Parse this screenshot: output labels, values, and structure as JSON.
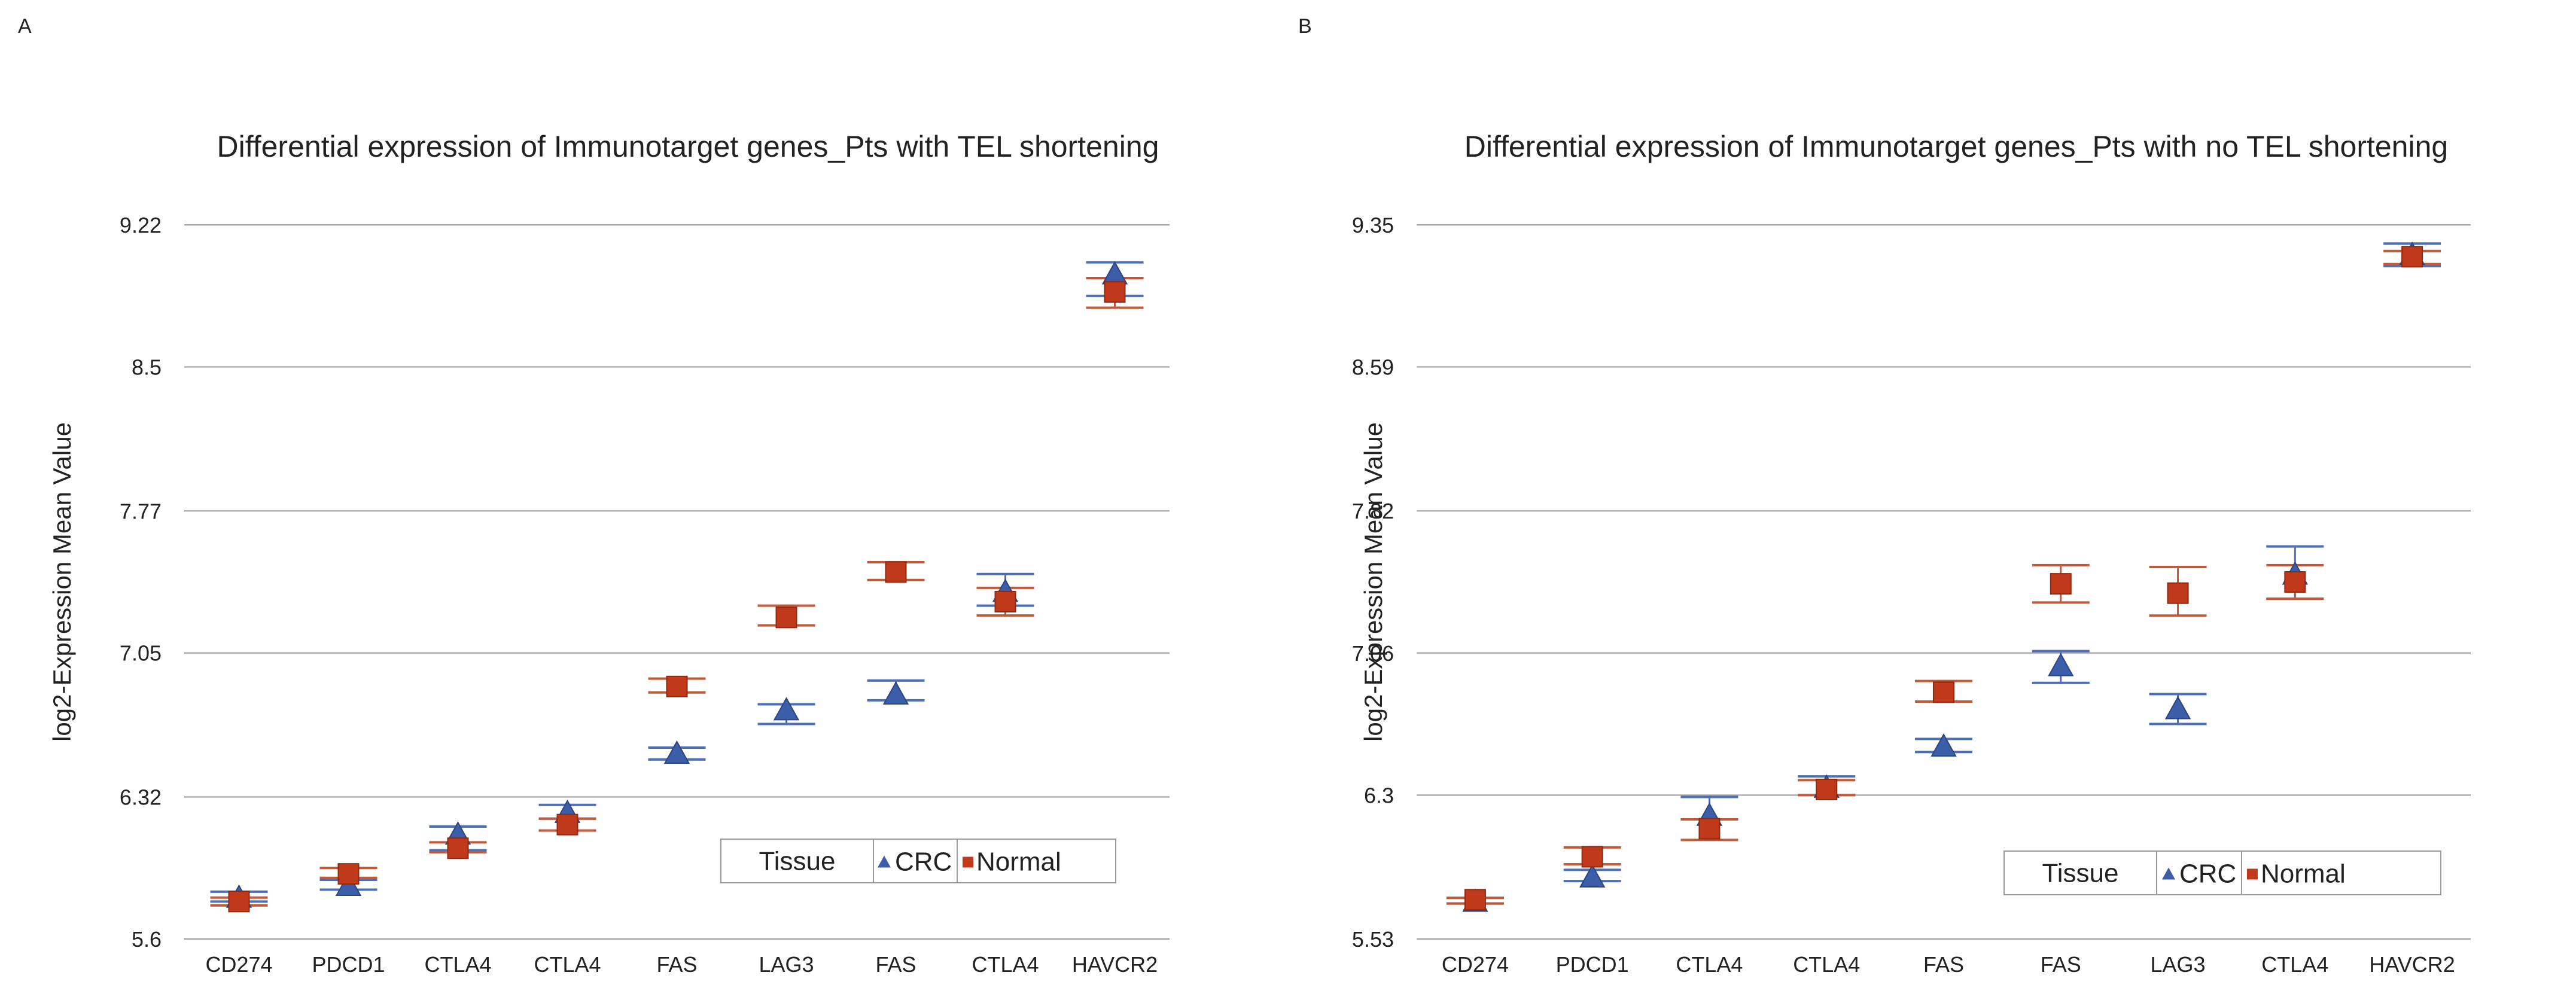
{
  "colors": {
    "crc": "#3c5ea8",
    "normal": "#c0391b",
    "crc_error": "#4c6fb8",
    "normal_error": "#c05a3a",
    "grid": "#9a9a9a",
    "text": "#222222"
  },
  "chart_data": [
    {
      "panel_label": "A",
      "type": "scatter",
      "title": "Differential expression of Immunotarget genes_Pts with TEL shortening",
      "xlabel": "",
      "ylabel": "log2-Expression Mean Value",
      "yticks": [
        "5.6",
        "6.32",
        "7.05",
        "7.77",
        "8.5",
        "9.22"
      ],
      "ylim": [
        5.6,
        9.22
      ],
      "grid": "horizontal",
      "legend": {
        "title": "Tissue",
        "entries": [
          "CRC",
          "Normal"
        ],
        "position": "bottom-right"
      },
      "categories": [
        "CD274",
        "PDCD1",
        "CTLA4",
        "CTLA4",
        "FAS",
        "LAG3",
        "FAS",
        "CTLA4",
        "HAVCR2"
      ],
      "series": [
        {
          "name": "CRC",
          "marker": "triangle",
          "values": [
            5.81,
            5.87,
            6.13,
            6.24,
            6.54,
            6.76,
            6.84,
            7.36,
            8.97
          ],
          "error_low": [
            5.79,
            5.85,
            6.05,
            6.21,
            6.51,
            6.69,
            6.81,
            7.29,
            8.86
          ],
          "error_high": [
            5.84,
            5.9,
            6.17,
            6.28,
            6.57,
            6.79,
            6.91,
            7.45,
            9.03
          ]
        },
        {
          "name": "Normal",
          "marker": "square",
          "values": [
            5.79,
            5.93,
            6.06,
            6.18,
            6.88,
            7.23,
            7.46,
            7.31,
            8.88
          ],
          "error_low": [
            5.77,
            5.91,
            6.04,
            6.15,
            6.85,
            7.19,
            7.42,
            7.24,
            8.8
          ],
          "error_high": [
            5.81,
            5.96,
            6.09,
            6.21,
            6.92,
            7.29,
            7.51,
            7.38,
            8.95
          ]
        }
      ]
    },
    {
      "panel_label": "B",
      "type": "scatter",
      "title": "Differential expression of Immunotarget genes_Pts with no TEL shortening",
      "xlabel": "",
      "ylabel": "log2-Expression Mean Value",
      "yticks": [
        "5.53",
        "6.3",
        "7.06",
        "7.82",
        "8.59",
        "9.35"
      ],
      "ylim": [
        5.53,
        9.35
      ],
      "grid": "horizontal",
      "legend": {
        "title": "Tissue",
        "entries": [
          "CRC",
          "Normal"
        ],
        "position": "bottom-right"
      },
      "categories": [
        "CD274",
        "PDCD1",
        "CTLA4",
        "CTLA4",
        "FAS",
        "FAS",
        "LAG3",
        "CTLA4",
        "HAVCR2"
      ],
      "series": [
        {
          "name": "CRC",
          "marker": "triangle",
          "values": [
            5.73,
            5.86,
            6.19,
            6.34,
            6.56,
            6.99,
            6.76,
            7.48,
            9.19
          ],
          "error_low": [
            5.72,
            5.84,
            6.17,
            6.3,
            6.53,
            6.9,
            6.68,
            7.35,
            9.13
          ],
          "error_high": [
            5.75,
            5.9,
            6.29,
            6.4,
            6.6,
            7.07,
            6.84,
            7.63,
            9.25
          ]
        },
        {
          "name": "Normal",
          "marker": "square",
          "values": [
            5.74,
            5.97,
            6.12,
            6.33,
            6.85,
            7.43,
            7.38,
            7.44,
            9.18
          ],
          "error_low": [
            5.72,
            5.93,
            6.06,
            6.3,
            6.8,
            7.33,
            7.26,
            7.35,
            9.14
          ],
          "error_high": [
            5.75,
            6.02,
            6.17,
            6.38,
            6.91,
            7.53,
            7.52,
            7.53,
            9.21
          ]
        }
      ]
    }
  ]
}
